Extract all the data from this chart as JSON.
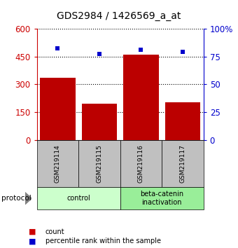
{
  "title": "GDS2984 / 1426569_a_at",
  "categories": [
    "GSM219114",
    "GSM219115",
    "GSM219116",
    "GSM219117"
  ],
  "bar_values": [
    335,
    195,
    460,
    205
  ],
  "percentile_values": [
    82,
    77,
    81,
    79
  ],
  "bar_color": "#bb0000",
  "dot_color": "#0000cc",
  "left_ylim": [
    0,
    600
  ],
  "right_ylim": [
    0,
    100
  ],
  "left_yticks": [
    0,
    150,
    300,
    450,
    600
  ],
  "right_yticks": [
    0,
    25,
    50,
    75,
    100
  ],
  "left_ycolor": "#cc0000",
  "right_ycolor": "#0000cc",
  "protocol_groups": [
    {
      "label": "control",
      "spans": [
        0,
        1
      ],
      "color": "#ccffcc"
    },
    {
      "label": "beta-catenin\ninactivation",
      "spans": [
        2,
        3
      ],
      "color": "#99ee99"
    }
  ],
  "legend_items": [
    {
      "label": "count",
      "color": "#cc0000"
    },
    {
      "label": "percentile rank within the sample",
      "color": "#0000cc"
    }
  ],
  "protocol_label": "protocol",
  "background_color": "#ffffff",
  "tick_label_area_color": "#c0c0c0",
  "title_fontsize": 10,
  "bar_width": 0.85
}
